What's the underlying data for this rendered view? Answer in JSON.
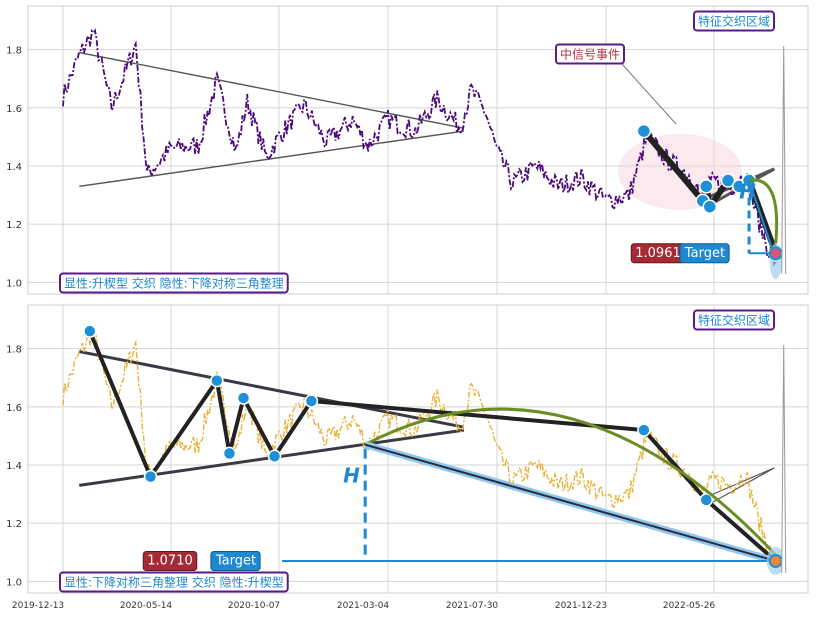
{
  "chart_data": {
    "type": "line",
    "x_ticks": [
      "2019-12-13",
      "2020-05-14",
      "2020-10-07",
      "2021-03-04",
      "2021-07-30",
      "2021-12-23",
      "2022-05-26"
    ],
    "y_ticks": [
      "1.0",
      "1.2",
      "1.4",
      "1.6",
      "1.8"
    ],
    "ylim": [
      0.96,
      1.95
    ],
    "grid": true,
    "panels": [
      {
        "name": "top",
        "line_color": "#4b0a7a",
        "tag_top_right": "特征交织区域",
        "tag_bottom_left": "显性:升楔型 交织 隐性:下降对称三角整理",
        "annotation": "中信号事件",
        "price_label": "1.0961",
        "target_label": "Target",
        "h_label": "H",
        "accent_colors": {
          "point": "#1e90d6",
          "price_box": "#a52a35",
          "target_box": "#1e88d0",
          "arrow": "#6b8e23",
          "tag_border": "#5a1a8a",
          "tag_text": "#1e88d0"
        }
      },
      {
        "name": "bottom",
        "line_color": "#e8b23a",
        "tag_top_right": "特征交织区域",
        "tag_bottom_left": "显性:下降对称三角整理 交织 隐性:升楔型",
        "price_label": "1.0710",
        "target_label": "Target",
        "h_label": "H"
      }
    ],
    "series_anchor_points": [
      [
        "2019-12-13",
        1.64
      ],
      [
        "2020-01-05",
        1.78
      ],
      [
        "2020-01-25",
        1.86
      ],
      [
        "2020-02-20",
        1.6
      ],
      [
        "2020-03-10",
        1.72
      ],
      [
        "2020-03-25",
        1.82
      ],
      [
        "2020-04-10",
        1.37
      ],
      [
        "2020-05-14",
        1.46
      ],
      [
        "2020-06-20",
        1.47
      ],
      [
        "2020-07-15",
        1.69
      ],
      [
        "2020-08-10",
        1.45
      ],
      [
        "2020-08-25",
        1.62
      ],
      [
        "2020-09-20",
        1.43
      ],
      [
        "2020-10-07",
        1.5
      ],
      [
        "2020-11-10",
        1.61
      ],
      [
        "2020-12-10",
        1.48
      ],
      [
        "2021-01-15",
        1.56
      ],
      [
        "2021-02-05",
        1.47
      ],
      [
        "2021-03-04",
        1.56
      ],
      [
        "2021-04-10",
        1.52
      ],
      [
        "2021-05-10",
        1.63
      ],
      [
        "2021-06-10",
        1.53
      ],
      [
        "2021-06-25",
        1.66
      ],
      [
        "2021-07-15",
        1.58
      ],
      [
        "2021-07-30",
        1.45
      ],
      [
        "2021-08-20",
        1.34
      ],
      [
        "2021-09-20",
        1.4
      ],
      [
        "2021-10-20",
        1.33
      ],
      [
        "2021-11-20",
        1.36
      ],
      [
        "2021-12-23",
        1.28
      ],
      [
        "2022-01-25",
        1.3
      ],
      [
        "2022-02-20",
        1.5
      ],
      [
        "2022-03-20",
        1.42
      ],
      [
        "2022-04-20",
        1.37
      ],
      [
        "2022-05-10",
        1.3
      ],
      [
        "2022-05-26",
        1.35
      ],
      [
        "2022-06-20",
        1.33
      ],
      [
        "2022-07-10",
        1.37
      ],
      [
        "2022-07-25",
        1.24
      ],
      [
        "2022-08-10",
        1.12
      ],
      [
        "2022-08-22",
        1.07
      ]
    ],
    "top_pivots": [
      [
        "2022-02-15",
        1.52
      ],
      [
        "2022-05-10",
        1.28
      ],
      [
        "2022-05-15",
        1.33
      ],
      [
        "2022-05-20",
        1.26
      ],
      [
        "2022-06-15",
        1.35
      ],
      [
        "2022-07-01",
        1.33
      ],
      [
        "2022-07-15",
        1.35
      ],
      [
        "2022-08-22",
        1.1
      ]
    ],
    "bottom_pivots": [
      [
        "2020-01-20",
        1.86
      ],
      [
        "2020-04-15",
        1.36
      ],
      [
        "2020-07-15",
        1.69
      ],
      [
        "2020-08-01",
        1.44
      ],
      [
        "2020-08-20",
        1.63
      ],
      [
        "2020-10-01",
        1.43
      ],
      [
        "2020-11-20",
        1.62
      ],
      [
        "2022-02-15",
        1.52
      ],
      [
        "2022-05-15",
        1.28
      ],
      [
        "2022-08-22",
        1.07
      ]
    ]
  }
}
